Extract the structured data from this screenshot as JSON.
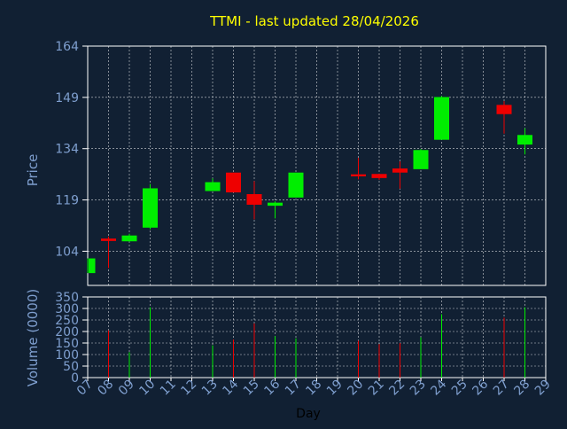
{
  "chart_data": [
    {
      "type": "candlestick",
      "title": "TTMI - last updated 28/04/2026",
      "xlabel": "Day",
      "ylabel": "Price",
      "ylim": [
        94,
        164
      ],
      "yticks": [
        104,
        119,
        134,
        149,
        164
      ],
      "grid": true,
      "colors": {
        "up": "#00ee00",
        "down": "#ee0000",
        "title": "#ffff00",
        "axis_text": "#7f9fcf",
        "grid": "#ffffff",
        "frame": "#ffffff",
        "background": "#112033"
      },
      "categories": [
        "07",
        "08",
        "09",
        "10",
        "11",
        "12",
        "13",
        "14",
        "15",
        "16",
        "17",
        "18",
        "19",
        "20",
        "21",
        "22",
        "23",
        "24",
        "25",
        "26",
        "27",
        "28",
        "29"
      ],
      "candles": [
        {
          "day": "07",
          "open": 97.6,
          "high": 101.9,
          "low": 97.6,
          "close": 101.9
        },
        {
          "day": "08",
          "open": 107.7,
          "high": 108.3,
          "low": 99.1,
          "close": 107.0
        },
        {
          "day": "09",
          "open": 106.9,
          "high": 109.1,
          "low": 106.8,
          "close": 108.6
        },
        {
          "day": "10",
          "open": 110.9,
          "high": 123.7,
          "low": 110.4,
          "close": 122.4
        },
        {
          "day": "13",
          "open": 121.6,
          "high": 125.3,
          "low": 121.6,
          "close": 124.2
        },
        {
          "day": "14",
          "open": 127.0,
          "high": 127.0,
          "low": 121.2,
          "close": 121.2
        },
        {
          "day": "15",
          "open": 120.7,
          "high": 124.5,
          "low": 113.3,
          "close": 117.6
        },
        {
          "day": "16",
          "open": 117.3,
          "high": 118.6,
          "low": 113.6,
          "close": 118.2
        },
        {
          "day": "17",
          "open": 119.7,
          "high": 127.0,
          "low": 119.7,
          "close": 127.0
        },
        {
          "day": "20",
          "open": 126.5,
          "high": 131.3,
          "low": 125.0,
          "close": 125.9
        },
        {
          "day": "21",
          "open": 126.6,
          "high": 126.6,
          "low": 124.9,
          "close": 125.4
        },
        {
          "day": "22",
          "open": 128.2,
          "high": 130.3,
          "low": 122.3,
          "close": 127.0
        },
        {
          "day": "23",
          "open": 128.0,
          "high": 133.9,
          "low": 128.0,
          "close": 133.6
        },
        {
          "day": "24",
          "open": 136.6,
          "high": 149.4,
          "low": 136.6,
          "close": 149.1
        },
        {
          "day": "27",
          "open": 146.8,
          "high": 147.9,
          "low": 138.4,
          "close": 144.1
        },
        {
          "day": "28",
          "open": 135.2,
          "high": 140.0,
          "low": 132.3,
          "close": 138.0
        }
      ]
    },
    {
      "type": "bar",
      "xlabel": "Day",
      "ylabel": "Volume (0000)",
      "ylim": [
        0,
        350
      ],
      "yticks": [
        0,
        50,
        100,
        150,
        200,
        250,
        300,
        350
      ],
      "grid": true,
      "categories": [
        "07",
        "08",
        "09",
        "10",
        "11",
        "12",
        "13",
        "14",
        "15",
        "16",
        "17",
        "18",
        "19",
        "20",
        "21",
        "22",
        "23",
        "24",
        "25",
        "26",
        "27",
        "28",
        "29"
      ],
      "volumes": [
        {
          "day": "08",
          "value": 205,
          "direction": "down"
        },
        {
          "day": "09",
          "value": 110,
          "direction": "up"
        },
        {
          "day": "10",
          "value": 305,
          "direction": "up"
        },
        {
          "day": "13",
          "value": 140,
          "direction": "up"
        },
        {
          "day": "14",
          "value": 165,
          "direction": "down"
        },
        {
          "day": "15",
          "value": 235,
          "direction": "down"
        },
        {
          "day": "16",
          "value": 180,
          "direction": "up"
        },
        {
          "day": "17",
          "value": 170,
          "direction": "up"
        },
        {
          "day": "20",
          "value": 160,
          "direction": "down"
        },
        {
          "day": "21",
          "value": 145,
          "direction": "down"
        },
        {
          "day": "22",
          "value": 150,
          "direction": "down"
        },
        {
          "day": "23",
          "value": 175,
          "direction": "up"
        },
        {
          "day": "24",
          "value": 275,
          "direction": "up"
        },
        {
          "day": "27",
          "value": 260,
          "direction": "down"
        },
        {
          "day": "28",
          "value": 305,
          "direction": "up"
        }
      ]
    }
  ]
}
